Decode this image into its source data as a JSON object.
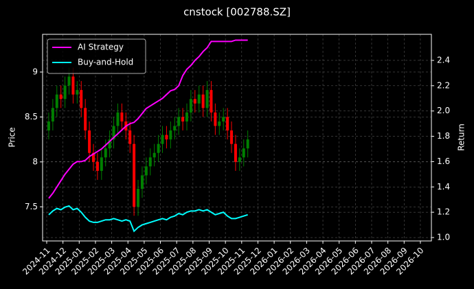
{
  "chart_data": {
    "type": "candlestick",
    "title": "cnstock [002788.SZ]",
    "ylabel": "Price",
    "y2label": "Return",
    "x": [
      "2024-11",
      "2024-11",
      "2024-11",
      "2024-11",
      "2024-12",
      "2024-12",
      "2024-12",
      "2024-12",
      "2025-01",
      "2025-01",
      "2025-01",
      "2025-01",
      "2025-02",
      "2025-02",
      "2025-02",
      "2025-02",
      "2025-03",
      "2025-03",
      "2025-03",
      "2025-03",
      "2025-04",
      "2025-04",
      "2025-04",
      "2025-04",
      "2025-05",
      "2025-05",
      "2025-05",
      "2025-05",
      "2025-06",
      "2025-06",
      "2025-06",
      "2025-06",
      "2025-07",
      "2025-07",
      "2025-07",
      "2025-07",
      "2025-08",
      "2025-08",
      "2025-08",
      "2025-08",
      "2025-09",
      "2025-09",
      "2025-09",
      "2025-09",
      "2025-10",
      "2025-10",
      "2025-10",
      "2025-10",
      "2025-11",
      "2025-11"
    ],
    "open": [
      8.35,
      8.45,
      8.6,
      8.75,
      8.7,
      8.85,
      8.95,
      8.75,
      8.8,
      8.6,
      8.35,
      8.1,
      8.0,
      7.9,
      8.05,
      8.15,
      8.25,
      8.4,
      8.55,
      8.45,
      8.35,
      8.2,
      7.5,
      7.7,
      7.85,
      7.95,
      8.05,
      8.1,
      8.2,
      8.3,
      8.25,
      8.35,
      8.4,
      8.5,
      8.45,
      8.55,
      8.7,
      8.65,
      8.75,
      8.6,
      8.8,
      8.55,
      8.4,
      8.45,
      8.5,
      8.35,
      8.2,
      8.0,
      8.05,
      8.15
    ],
    "high": [
      8.55,
      8.7,
      8.85,
      8.85,
      8.95,
      9.05,
      9.05,
      8.9,
      8.9,
      8.7,
      8.45,
      8.2,
      8.1,
      8.15,
      8.25,
      8.35,
      8.5,
      8.65,
      8.65,
      8.55,
      8.45,
      8.3,
      7.8,
      7.95,
      8.05,
      8.15,
      8.2,
      8.3,
      8.4,
      8.4,
      8.45,
      8.5,
      8.6,
      8.6,
      8.65,
      8.8,
      8.8,
      8.85,
      8.85,
      8.9,
      8.9,
      8.65,
      8.55,
      8.6,
      8.6,
      8.45,
      8.3,
      8.15,
      8.25,
      8.35
    ],
    "low": [
      8.25,
      8.35,
      8.5,
      8.6,
      8.6,
      8.75,
      8.65,
      8.65,
      8.5,
      8.25,
      8.0,
      7.9,
      7.8,
      7.8,
      7.95,
      8.05,
      8.15,
      8.3,
      8.35,
      8.25,
      8.1,
      7.4,
      7.4,
      7.6,
      7.75,
      7.85,
      7.95,
      8.0,
      8.1,
      8.15,
      8.15,
      8.25,
      8.3,
      8.35,
      8.35,
      8.45,
      8.55,
      8.55,
      8.5,
      8.5,
      8.45,
      8.3,
      8.3,
      8.35,
      8.25,
      8.1,
      7.9,
      7.9,
      7.95,
      8.05
    ],
    "close": [
      8.45,
      8.6,
      8.75,
      8.7,
      8.85,
      8.95,
      8.75,
      8.8,
      8.6,
      8.35,
      8.1,
      8.0,
      7.9,
      8.05,
      8.15,
      8.25,
      8.4,
      8.55,
      8.45,
      8.35,
      8.2,
      7.5,
      7.7,
      7.85,
      7.95,
      8.05,
      8.1,
      8.2,
      8.3,
      8.25,
      8.35,
      8.4,
      8.5,
      8.45,
      8.55,
      8.7,
      8.65,
      8.75,
      8.6,
      8.8,
      8.55,
      8.4,
      8.45,
      8.5,
      8.35,
      8.2,
      8.0,
      8.05,
      8.15,
      8.25
    ],
    "up_color": "#008000",
    "down_color": "#ff0000",
    "series": [
      {
        "name": "AI Strategy",
        "color": "#ff00ff",
        "axis": "y2",
        "values": [
          1.31,
          1.35,
          1.4,
          1.45,
          1.5,
          1.54,
          1.58,
          1.6,
          1.6,
          1.61,
          1.64,
          1.66,
          1.68,
          1.7,
          1.73,
          1.76,
          1.79,
          1.82,
          1.85,
          1.88,
          1.9,
          1.91,
          1.94,
          1.98,
          2.02,
          2.04,
          2.06,
          2.08,
          2.1,
          2.13,
          2.16,
          2.17,
          2.2,
          2.28,
          2.33,
          2.36,
          2.4,
          2.43,
          2.47,
          2.5,
          2.55,
          2.55,
          2.55,
          2.55,
          2.55,
          2.55,
          2.56,
          2.56,
          2.56,
          2.56
        ]
      },
      {
        "name": "Buy-and-Hold",
        "color": "#00ffff",
        "axis": "y2",
        "values": [
          1.18,
          1.21,
          1.23,
          1.22,
          1.24,
          1.25,
          1.22,
          1.23,
          1.2,
          1.16,
          1.13,
          1.12,
          1.12,
          1.13,
          1.14,
          1.14,
          1.15,
          1.14,
          1.13,
          1.14,
          1.13,
          1.05,
          1.08,
          1.1,
          1.11,
          1.12,
          1.13,
          1.14,
          1.15,
          1.14,
          1.16,
          1.17,
          1.19,
          1.18,
          1.2,
          1.21,
          1.21,
          1.22,
          1.21,
          1.22,
          1.2,
          1.18,
          1.19,
          1.2,
          1.17,
          1.15,
          1.15,
          1.16,
          1.17,
          1.18
        ]
      }
    ],
    "ylim": [
      7.12,
      9.42
    ],
    "yticks": [
      7.5,
      8.0,
      8.5,
      9.0
    ],
    "y2lim": [
      0.973,
      2.606
    ],
    "y2ticks": [
      {
        "value": 1.0,
        "label": "1.0"
      },
      {
        "value": 1.2,
        "label": "1.2"
      },
      {
        "value": 1.4,
        "label": "1.4"
      },
      {
        "value": 1.6,
        "label": "1.6"
      },
      {
        "value": 1.8,
        "label": "1.8"
      },
      {
        "value": 2.0,
        "label": "2.0"
      },
      {
        "value": 2.2,
        "label": "2.2"
      },
      {
        "value": 2.4,
        "label": "2.4"
      }
    ],
    "xticks": [
      "2024-11",
      "2024-12",
      "2025-01",
      "2025-02",
      "2025-03",
      "2025-04",
      "2025-05",
      "2025-06",
      "2025-07",
      "2025-08",
      "2025-09",
      "2025-10",
      "2025-11",
      "2025-12",
      "2026-01",
      "2026-02",
      "2026-03",
      "2026-04",
      "2026-05",
      "2026-06",
      "2026-07",
      "2026-08",
      "2026-09",
      "2026-10"
    ],
    "grid": true,
    "legend": "upper left"
  }
}
